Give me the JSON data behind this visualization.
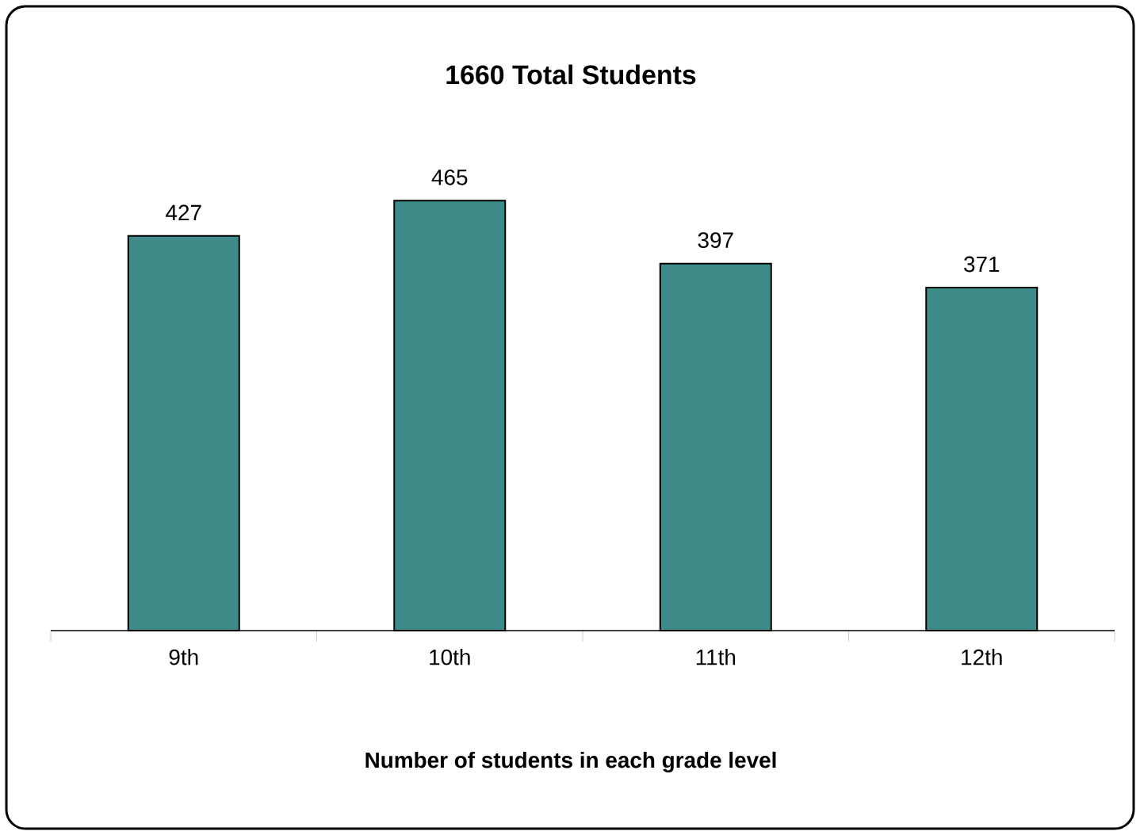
{
  "chart_data": {
    "type": "bar",
    "title": "1660 Total Students",
    "xlabel": "Number of students in each grade level",
    "categories": [
      "9th",
      "10th",
      "11th",
      "12th"
    ],
    "values": [
      427,
      465,
      397,
      371
    ],
    "color": "#3d8c8a",
    "data_labels": true
  }
}
